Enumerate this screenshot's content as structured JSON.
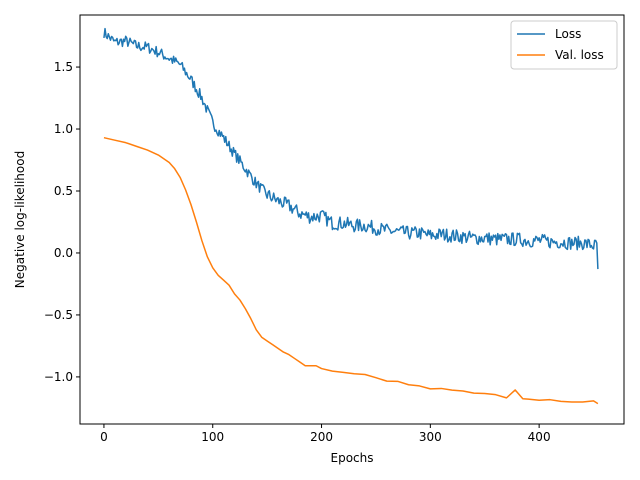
{
  "chart_data": {
    "type": "line",
    "title": "",
    "xlabel": "Epochs",
    "ylabel": "Negative log-likelihood",
    "xlim": [
      -22,
      478
    ],
    "ylim": [
      -1.38,
      1.92
    ],
    "xticks": [
      0,
      100,
      200,
      300,
      400
    ],
    "yticks": [
      -1.0,
      -0.5,
      0.0,
      0.5,
      1.0,
      1.5
    ],
    "ytick_labels": [
      "−1.0",
      "−0.5",
      "0.0",
      "0.5",
      "1.0",
      "1.5"
    ],
    "grid": false,
    "legend": "top-right",
    "noise_seed": 7,
    "series": [
      {
        "name": "Loss",
        "color": "#1f77b4",
        "noisy": true,
        "x_end": 454,
        "last_value": -0.13,
        "points": [
          [
            0,
            1.78
          ],
          [
            10,
            1.7
          ],
          [
            20,
            1.71
          ],
          [
            30,
            1.67
          ],
          [
            40,
            1.66
          ],
          [
            50,
            1.62
          ],
          [
            60,
            1.57
          ],
          [
            70,
            1.52
          ],
          [
            80,
            1.4
          ],
          [
            90,
            1.25
          ],
          [
            100,
            1.05
          ],
          [
            110,
            0.93
          ],
          [
            120,
            0.8
          ],
          [
            130,
            0.68
          ],
          [
            140,
            0.56
          ],
          [
            150,
            0.47
          ],
          [
            160,
            0.42
          ],
          [
            170,
            0.38
          ],
          [
            180,
            0.32
          ],
          [
            190,
            0.29
          ],
          [
            200,
            0.3
          ],
          [
            210,
            0.24
          ],
          [
            220,
            0.24
          ],
          [
            230,
            0.22
          ],
          [
            240,
            0.22
          ],
          [
            250,
            0.2
          ],
          [
            260,
            0.18
          ],
          [
            270,
            0.17
          ],
          [
            280,
            0.16
          ],
          [
            290,
            0.16
          ],
          [
            300,
            0.14
          ],
          [
            310,
            0.15
          ],
          [
            320,
            0.14
          ],
          [
            330,
            0.13
          ],
          [
            340,
            0.12
          ],
          [
            350,
            0.12
          ],
          [
            360,
            0.11
          ],
          [
            370,
            0.11
          ],
          [
            380,
            0.11
          ],
          [
            390,
            0.1
          ],
          [
            400,
            0.1
          ],
          [
            410,
            0.09
          ],
          [
            420,
            0.09
          ],
          [
            430,
            0.08
          ],
          [
            440,
            0.08
          ],
          [
            450,
            0.06
          ]
        ]
      },
      {
        "name": "Val. loss",
        "color": "#ff7f0e",
        "noisy": false,
        "x_end": 454,
        "points": [
          [
            0,
            0.93
          ],
          [
            10,
            0.91
          ],
          [
            20,
            0.89
          ],
          [
            30,
            0.86
          ],
          [
            40,
            0.83
          ],
          [
            50,
            0.79
          ],
          [
            60,
            0.73
          ],
          [
            65,
            0.68
          ],
          [
            70,
            0.61
          ],
          [
            75,
            0.51
          ],
          [
            80,
            0.39
          ],
          [
            85,
            0.25
          ],
          [
            90,
            0.1
          ],
          [
            95,
            -0.03
          ],
          [
            100,
            -0.12
          ],
          [
            105,
            -0.18
          ],
          [
            110,
            -0.22
          ],
          [
            115,
            -0.26
          ],
          [
            120,
            -0.33
          ],
          [
            125,
            -0.38
          ],
          [
            130,
            -0.45
          ],
          [
            135,
            -0.53
          ],
          [
            140,
            -0.62
          ],
          [
            145,
            -0.68
          ],
          [
            150,
            -0.71
          ],
          [
            155,
            -0.74
          ],
          [
            160,
            -0.77
          ],
          [
            165,
            -0.8
          ],
          [
            170,
            -0.82
          ],
          [
            175,
            -0.85
          ],
          [
            180,
            -0.88
          ],
          [
            185,
            -0.91
          ],
          [
            190,
            -0.91
          ],
          [
            195,
            -0.91
          ],
          [
            200,
            -0.94
          ],
          [
            210,
            -0.96
          ],
          [
            220,
            -0.97
          ],
          [
            230,
            -0.98
          ],
          [
            240,
            -0.99
          ],
          [
            250,
            -1.01
          ],
          [
            260,
            -1.03
          ],
          [
            270,
            -1.04
          ],
          [
            280,
            -1.06
          ],
          [
            290,
            -1.08
          ],
          [
            300,
            -1.09
          ],
          [
            310,
            -1.1
          ],
          [
            320,
            -1.11
          ],
          [
            330,
            -1.12
          ],
          [
            340,
            -1.13
          ],
          [
            350,
            -1.14
          ],
          [
            360,
            -1.15
          ],
          [
            370,
            -1.16
          ],
          [
            378,
            -1.1
          ],
          [
            385,
            -1.17
          ],
          [
            390,
            -1.17
          ],
          [
            400,
            -1.19
          ],
          [
            410,
            -1.19
          ],
          [
            420,
            -1.2
          ],
          [
            430,
            -1.21
          ],
          [
            440,
            -1.21
          ],
          [
            450,
            -1.2
          ],
          [
            454,
            -1.21
          ]
        ]
      }
    ]
  }
}
